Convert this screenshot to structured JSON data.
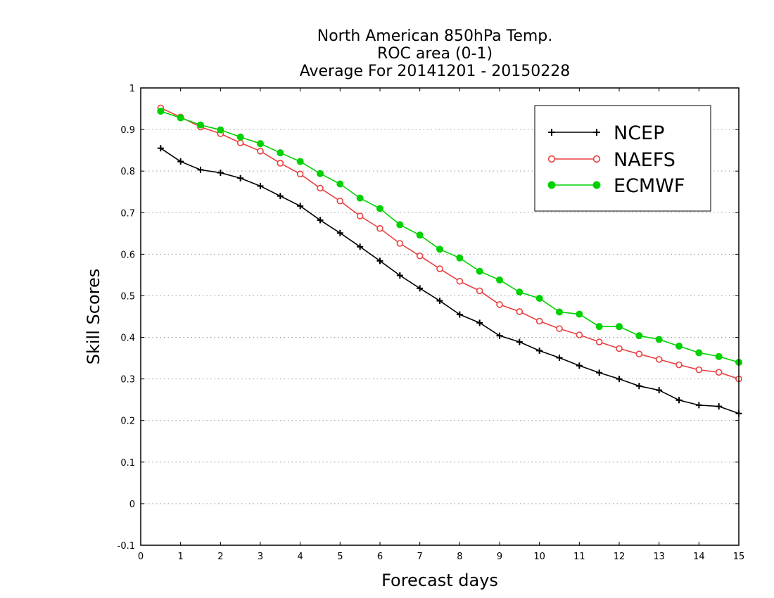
{
  "chart_data": {
    "type": "line",
    "title_lines": [
      "North American 850hPa Temp.",
      "ROC area (0-1)",
      "Average For 20141201 - 20150228"
    ],
    "xlabel": "Forecast days",
    "ylabel": "Skill Scores",
    "xlim": [
      0,
      15
    ],
    "ylim": [
      -0.1,
      1
    ],
    "x_ticks": [
      0,
      1,
      2,
      3,
      4,
      5,
      6,
      7,
      8,
      9,
      10,
      11,
      12,
      13,
      14,
      15
    ],
    "x_tick_labels": [
      "0",
      "1",
      "2",
      "3",
      "4",
      "5",
      "6",
      "7",
      "8",
      "9",
      "10",
      "11",
      "12",
      "13",
      "14",
      "15"
    ],
    "y_ticks": [
      -0.1,
      0,
      0.1,
      0.2,
      0.3,
      0.4,
      0.5,
      0.6,
      0.7,
      0.8,
      0.9,
      1
    ],
    "y_tick_labels": [
      "-0.1",
      "0",
      "0.1",
      "0.2",
      "0.3",
      "0.4",
      "0.5",
      "0.6",
      "0.7",
      "0.8",
      "0.9",
      "1"
    ],
    "grid": "horizontal dotted",
    "legend_position": "top-right",
    "x": [
      0.5,
      1,
      1.5,
      2,
      2.5,
      3,
      3.5,
      4,
      4.5,
      5,
      5.5,
      6,
      6.5,
      7,
      7.5,
      8,
      8.5,
      9,
      9.5,
      10,
      10.5,
      11,
      11.5,
      12,
      12.5,
      13,
      13.5,
      14,
      14.5,
      15
    ],
    "series": [
      {
        "name": "NCEP",
        "color": "#000000",
        "marker": "plus",
        "values": [
          0.855,
          0.823,
          0.803,
          0.796,
          0.783,
          0.764,
          0.74,
          0.716,
          0.682,
          0.651,
          0.618,
          0.584,
          0.549,
          0.518,
          0.488,
          0.455,
          0.435,
          0.404,
          0.389,
          0.368,
          0.351,
          0.332,
          0.315,
          0.3,
          0.283,
          0.273,
          0.249,
          0.237,
          0.234,
          0.217
        ]
      },
      {
        "name": "NAEFS",
        "color": "#e8403f",
        "marker": "open-circle",
        "values": [
          0.952,
          0.93,
          0.906,
          0.89,
          0.868,
          0.848,
          0.819,
          0.793,
          0.759,
          0.728,
          0.692,
          0.662,
          0.626,
          0.596,
          0.565,
          0.535,
          0.512,
          0.479,
          0.462,
          0.439,
          0.421,
          0.406,
          0.389,
          0.373,
          0.36,
          0.347,
          0.334,
          0.322,
          0.316,
          0.3
        ]
      },
      {
        "name": "ECMWF",
        "color": "#00d100",
        "marker": "filled-circle",
        "values": [
          0.944,
          0.928,
          0.911,
          0.899,
          0.882,
          0.866,
          0.844,
          0.823,
          0.794,
          0.769,
          0.735,
          0.71,
          0.671,
          0.646,
          0.612,
          0.591,
          0.559,
          0.538,
          0.509,
          0.494,
          0.461,
          0.456,
          0.426,
          0.426,
          0.404,
          0.395,
          0.379,
          0.363,
          0.354,
          0.34
        ]
      }
    ]
  }
}
